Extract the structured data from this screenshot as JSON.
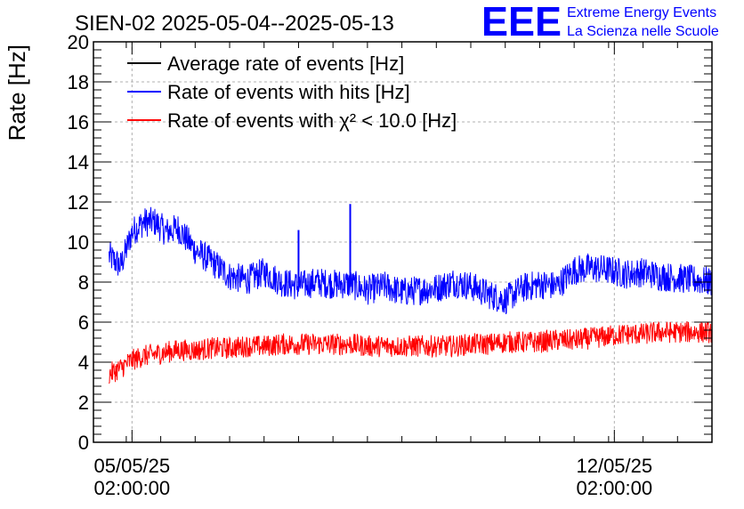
{
  "chart_data": {
    "type": "line",
    "title": "SIEN-02 2025-05-04--2025-05-13",
    "xlabel": "",
    "ylabel": "Rate [Hz]",
    "ylim": [
      0,
      20
    ],
    "y_ticks": [
      "0",
      "2",
      "4",
      "6",
      "8",
      "10",
      "12",
      "14",
      "16",
      "18",
      "20"
    ],
    "x_range": [
      "2025-05-04 12:34",
      "2025-05-13 12:00"
    ],
    "x_ticks": [
      {
        "date": "05/05/25",
        "time": "02:00:00",
        "x": "2025-05-05 02:00"
      },
      {
        "date": "12/05/25",
        "time": "02:00:00",
        "x": "2025-05-12 02:00"
      }
    ],
    "grid": true,
    "legend_position": "top-left",
    "series": [
      {
        "name": "Average rate of events [Hz]",
        "color": "#000000",
        "x": [],
        "values": []
      },
      {
        "name": "Rate of events with hits [Hz]",
        "color": "#0000ff",
        "x": [
          "2025-05-04 18:00",
          "2025-05-04 22:00",
          "2025-05-05 00:00",
          "2025-05-05 02:00",
          "2025-05-05 06:00",
          "2025-05-05 10:00",
          "2025-05-05 14:00",
          "2025-05-05 18:00",
          "2025-05-06 00:00",
          "2025-05-06 06:00",
          "2025-05-06 12:00",
          "2025-05-06 18:00",
          "2025-05-07 00:00",
          "2025-05-07 06:00",
          "2025-05-07 12:00",
          "2025-05-07 18:00",
          "2025-05-08 00:00",
          "2025-05-08 06:00",
          "2025-05-08 12:00",
          "2025-05-08 18:00",
          "2025-05-09 00:00",
          "2025-05-09 06:00",
          "2025-05-09 12:00",
          "2025-05-09 18:00",
          "2025-05-10 00:00",
          "2025-05-10 06:00",
          "2025-05-10 12:00",
          "2025-05-10 18:00",
          "2025-05-11 00:00",
          "2025-05-11 06:00",
          "2025-05-11 12:00",
          "2025-05-11 18:00",
          "2025-05-12 00:00",
          "2025-05-12 06:00",
          "2025-05-12 12:00",
          "2025-05-12 18:00",
          "2025-05-13 00:00",
          "2025-05-13 06:00",
          "2025-05-13 12:00"
        ],
        "values": [
          9.3,
          8.8,
          9.6,
          10.5,
          11.0,
          11.0,
          10.5,
          10.7,
          9.6,
          9.0,
          8.3,
          8.1,
          8.5,
          8.0,
          7.8,
          8.0,
          7.9,
          7.9,
          7.6,
          7.8,
          7.5,
          7.6,
          7.7,
          8.0,
          7.8,
          7.4,
          7.1,
          7.7,
          7.9,
          7.8,
          8.6,
          8.7,
          8.6,
          8.4,
          8.5,
          8.3,
          8.2,
          8.1,
          8.0
        ]
      },
      {
        "name": "Rate of events with χ² < 10.0 [Hz]",
        "color": "#ff0000",
        "x": [
          "2025-05-04 18:00",
          "2025-05-04 22:00",
          "2025-05-05 00:00",
          "2025-05-05 02:00",
          "2025-05-05 06:00",
          "2025-05-05 10:00",
          "2025-05-05 14:00",
          "2025-05-05 18:00",
          "2025-05-06 00:00",
          "2025-05-06 06:00",
          "2025-05-06 12:00",
          "2025-05-06 18:00",
          "2025-05-07 00:00",
          "2025-05-07 06:00",
          "2025-05-07 12:00",
          "2025-05-07 18:00",
          "2025-05-08 00:00",
          "2025-05-08 06:00",
          "2025-05-08 12:00",
          "2025-05-08 18:00",
          "2025-05-09 00:00",
          "2025-05-09 06:00",
          "2025-05-09 12:00",
          "2025-05-09 18:00",
          "2025-05-10 00:00",
          "2025-05-10 06:00",
          "2025-05-10 12:00",
          "2025-05-10 18:00",
          "2025-05-11 00:00",
          "2025-05-11 06:00",
          "2025-05-11 12:00",
          "2025-05-11 18:00",
          "2025-05-12 00:00",
          "2025-05-12 06:00",
          "2025-05-12 12:00",
          "2025-05-12 18:00",
          "2025-05-13 00:00",
          "2025-05-13 06:00",
          "2025-05-13 12:00"
        ],
        "values": [
          3.4,
          3.7,
          3.9,
          4.1,
          4.3,
          4.4,
          4.5,
          4.6,
          4.6,
          4.7,
          4.7,
          4.8,
          4.8,
          4.9,
          4.9,
          4.9,
          4.9,
          4.9,
          4.8,
          4.8,
          4.8,
          4.8,
          4.8,
          4.8,
          4.9,
          4.9,
          5.0,
          5.0,
          5.0,
          5.1,
          5.1,
          5.2,
          5.3,
          5.4,
          5.4,
          5.5,
          5.5,
          5.5,
          5.5
        ]
      }
    ],
    "spikes": [
      {
        "series": "Rate of events with hits [Hz]",
        "x": "2025-05-07 12:00",
        "y": 10.6
      },
      {
        "series": "Rate of events with hits [Hz]",
        "x": "2025-05-08 06:00",
        "y": 11.9
      }
    ]
  },
  "logo": {
    "mark": "EEE",
    "line1": "Extreme Energy Events",
    "line2": "La Scienza nelle Scuole",
    "color": "#0000ff"
  }
}
